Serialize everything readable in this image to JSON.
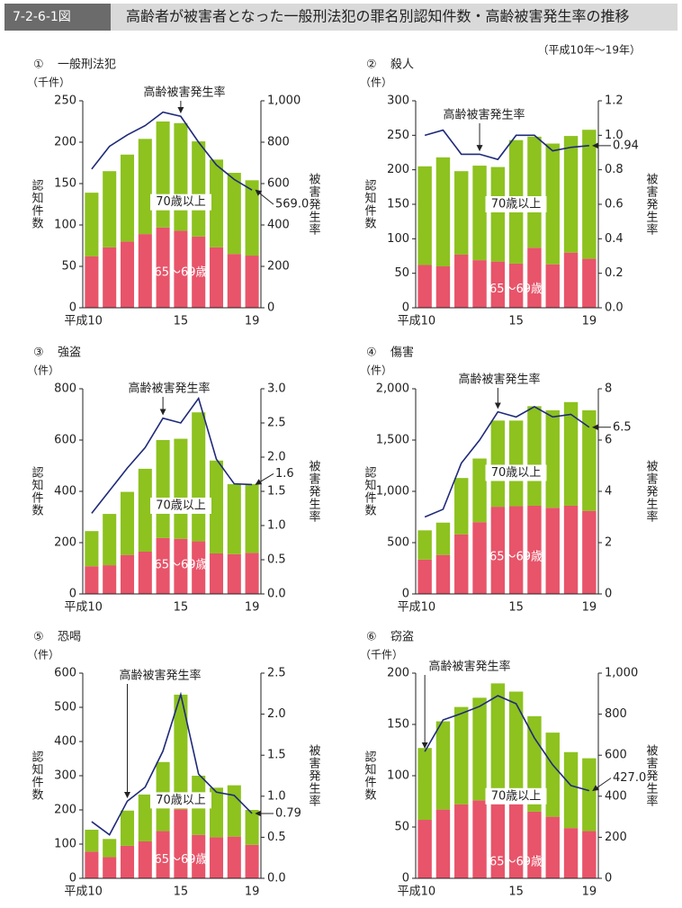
{
  "header": {
    "figure_number": "7-2-6-1図",
    "title": "高齢者が被害者となった一般刑法犯の罪名別認知件数・高齢被害発生率の推移",
    "note": "（平成10年～19年）"
  },
  "chart_data": [
    {
      "type": "combo",
      "number": "①",
      "title": "一般刑法犯",
      "y_unit": "（千件）",
      "ylabel": "認知件数",
      "y2label": "被害発生率",
      "categories": [
        "平成10",
        null,
        null,
        null,
        null,
        "15",
        null,
        null,
        null,
        "19"
      ],
      "series": [
        {
          "name": "65～69歳",
          "color": "#e8546a",
          "values": [
            62,
            73,
            80,
            89,
            97,
            93,
            86,
            73,
            65,
            63
          ]
        },
        {
          "name": "70歳以上",
          "color": "#8dc21f",
          "values": [
            77,
            92,
            105,
            115,
            128,
            130,
            115,
            106,
            98,
            91
          ]
        },
        {
          "name": "高齢被害発生率",
          "color": "#1f2a7a",
          "type": "line",
          "axis": "y2",
          "values": [
            670,
            780,
            835,
            880,
            945,
            925,
            800,
            690,
            620,
            569
          ],
          "value_labels": [
            null,
            null,
            null,
            null,
            null,
            null,
            null,
            null,
            null,
            "569.0"
          ]
        }
      ],
      "ylim": [
        0,
        250
      ],
      "yticks": [
        0,
        50,
        100,
        150,
        200,
        250
      ],
      "y2lim": [
        0,
        1000
      ],
      "y2ticks": [
        0,
        200,
        400,
        600,
        800,
        {
          "value": 1000,
          "label": "1,000"
        }
      ]
    },
    {
      "type": "combo",
      "number": "②",
      "title": "殺人",
      "y_unit": "（件）",
      "ylabel": "認知件数",
      "y2label": "被害発生率",
      "categories": [
        "平成10",
        null,
        null,
        null,
        null,
        "15",
        null,
        null,
        null,
        "19"
      ],
      "series": [
        {
          "name": "65～69歳",
          "color": "#e8546a",
          "values": [
            62,
            60,
            77,
            69,
            67,
            64,
            87,
            63,
            80,
            71
          ]
        },
        {
          "name": "70歳以上",
          "color": "#8dc21f",
          "values": [
            143,
            158,
            121,
            137,
            137,
            179,
            161,
            175,
            169,
            187
          ]
        },
        {
          "name": "高齢被害発生率",
          "color": "#1f2a7a",
          "type": "line",
          "axis": "y2",
          "values": [
            1.0,
            1.03,
            0.89,
            0.89,
            0.86,
            1.0,
            1.0,
            0.91,
            0.93,
            0.94
          ],
          "value_labels": [
            null,
            null,
            null,
            null,
            null,
            null,
            null,
            null,
            null,
            "0.94"
          ]
        }
      ],
      "ylim": [
        0,
        300
      ],
      "yticks": [
        0,
        50,
        100,
        150,
        200,
        250,
        300
      ],
      "y2lim": [
        0,
        1.2
      ],
      "y2ticks": [
        {
          "value": 0,
          "label": "0.0"
        },
        0.2,
        0.4,
        0.6,
        0.8,
        {
          "value": 1,
          "label": "1.0"
        },
        1.2
      ]
    },
    {
      "type": "combo",
      "number": "③",
      "title": "強盗",
      "y_unit": "（件）",
      "ylabel": "認知件数",
      "y2label": "被害発生率",
      "categories": [
        "平成10",
        null,
        null,
        null,
        null,
        "15",
        null,
        null,
        null,
        "19"
      ],
      "series": [
        {
          "name": "65～69歳",
          "color": "#e8546a",
          "values": [
            108,
            112,
            152,
            165,
            218,
            215,
            205,
            158,
            155,
            160
          ]
        },
        {
          "name": "70歳以上",
          "color": "#8dc21f",
          "values": [
            137,
            200,
            246,
            323,
            382,
            390,
            503,
            362,
            273,
            268
          ]
        },
        {
          "name": "高齢被害発生率",
          "color": "#1f2a7a",
          "type": "line",
          "axis": "y2",
          "values": [
            1.18,
            1.51,
            1.84,
            2.14,
            2.57,
            2.5,
            2.86,
            1.97,
            1.61,
            1.6
          ],
          "value_labels": [
            null,
            null,
            null,
            null,
            null,
            null,
            null,
            null,
            null,
            "1.6"
          ]
        }
      ],
      "ylim": [
        0,
        800
      ],
      "yticks": [
        0,
        200,
        400,
        600,
        800
      ],
      "y2lim": [
        0,
        3
      ],
      "y2ticks": [
        {
          "value": 0,
          "label": "0.0"
        },
        0.5,
        {
          "value": 1,
          "label": "1.0"
        },
        1.5,
        {
          "value": 2,
          "label": "2.0"
        },
        2.5,
        {
          "value": 3,
          "label": "3.0"
        }
      ]
    },
    {
      "type": "combo",
      "number": "④",
      "title": "傷害",
      "y_unit": "（件）",
      "ylabel": "認知件数",
      "y2label": "被害発生率",
      "categories": [
        "平成10",
        null,
        null,
        null,
        null,
        "15",
        null,
        null,
        null,
        "19"
      ],
      "series": [
        {
          "name": "65～69歳",
          "color": "#e8546a",
          "values": [
            335,
            380,
            580,
            700,
            850,
            855,
            860,
            840,
            860,
            810
          ]
        },
        {
          "name": "70歳以上",
          "color": "#8dc21f",
          "values": [
            285,
            315,
            550,
            620,
            840,
            835,
            970,
            950,
            1010,
            980
          ]
        },
        {
          "name": "高齢被害発生率",
          "color": "#1f2a7a",
          "type": "line",
          "axis": "y2",
          "values": [
            3.0,
            3.3,
            5.1,
            6.0,
            7.1,
            6.9,
            7.3,
            6.9,
            7.0,
            6.5
          ],
          "value_labels": [
            null,
            null,
            null,
            null,
            null,
            null,
            null,
            null,
            null,
            "6.5"
          ]
        }
      ],
      "ylim": [
        0,
        2000
      ],
      "yticks": [
        0,
        500,
        {
          "value": 1000,
          "label": "1,000"
        },
        {
          "value": 1500,
          "label": "1,500"
        },
        {
          "value": 2000,
          "label": "2,000"
        }
      ],
      "y2lim": [
        0,
        8
      ],
      "y2ticks": [
        0,
        2,
        4,
        6,
        8
      ]
    },
    {
      "type": "combo",
      "number": "⑤",
      "title": "恐喝",
      "y_unit": "（件）",
      "ylabel": "認知件数",
      "y2label": "被害発生率",
      "categories": [
        "平成10",
        null,
        null,
        null,
        null,
        "15",
        null,
        null,
        null,
        "19"
      ],
      "series": [
        {
          "name": "65～69歳",
          "color": "#e8546a",
          "values": [
            78,
            62,
            95,
            108,
            138,
            202,
            127,
            120,
            122,
            98
          ]
        },
        {
          "name": "70歳以上",
          "color": "#8dc21f",
          "values": [
            64,
            53,
            103,
            137,
            202,
            335,
            173,
            145,
            150,
            102
          ]
        },
        {
          "name": "高齢被害発生率",
          "color": "#1f2a7a",
          "type": "line",
          "axis": "y2",
          "values": [
            0.69,
            0.53,
            0.94,
            1.11,
            1.55,
            2.24,
            1.27,
            1.05,
            1.01,
            0.79
          ],
          "value_labels": [
            null,
            null,
            null,
            null,
            null,
            null,
            null,
            null,
            null,
            "0.79"
          ]
        }
      ],
      "ylim": [
        0,
        600
      ],
      "yticks": [
        0,
        100,
        200,
        300,
        400,
        500,
        600
      ],
      "y2lim": [
        0,
        2.5
      ],
      "y2ticks": [
        {
          "value": 0,
          "label": "0.0"
        },
        0.5,
        {
          "value": 1,
          "label": "1.0"
        },
        1.5,
        {
          "value": 2,
          "label": "2.0"
        },
        2.5
      ]
    },
    {
      "type": "combo",
      "number": "⑥",
      "title": "窃盗",
      "y_unit": "（千件）",
      "ylabel": "認知件数",
      "y2label": "被害発生率",
      "categories": [
        "平成10",
        null,
        null,
        null,
        null,
        "15",
        null,
        null,
        null,
        "19"
      ],
      "series": [
        {
          "name": "65～69歳",
          "color": "#e8546a",
          "values": [
            57,
            67,
            72,
            76,
            83,
            78,
            65,
            60,
            49,
            46
          ]
        },
        {
          "name": "70歳以上",
          "color": "#8dc21f",
          "values": [
            70,
            86,
            95,
            100,
            107,
            104,
            93,
            82,
            74,
            71
          ]
        },
        {
          "name": "高齢被害発生率",
          "color": "#1f2a7a",
          "type": "line",
          "axis": "y2",
          "values": [
            618,
            772,
            803,
            838,
            890,
            851,
            684,
            553,
            452,
            427
          ],
          "value_labels": [
            null,
            null,
            null,
            null,
            null,
            null,
            null,
            null,
            null,
            "427.0"
          ]
        }
      ],
      "ylim": [
        0,
        200
      ],
      "yticks": [
        0,
        50,
        100,
        150,
        200
      ],
      "y2lim": [
        0,
        1000
      ],
      "y2ticks": [
        0,
        200,
        400,
        600,
        800,
        {
          "value": 1000,
          "label": "1,000"
        }
      ]
    }
  ]
}
